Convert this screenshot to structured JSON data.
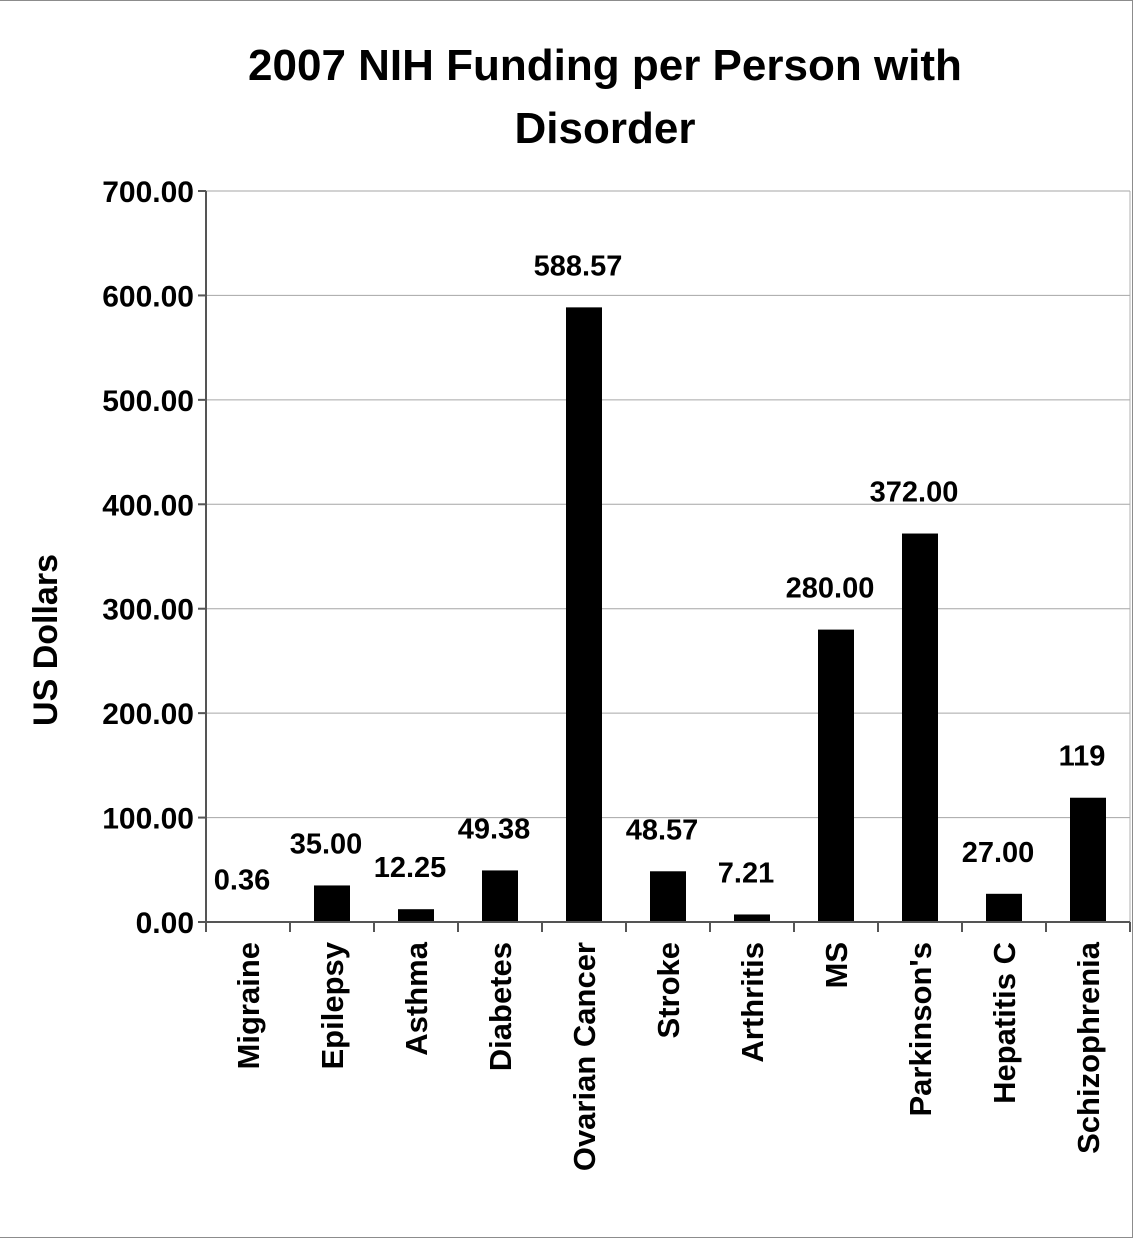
{
  "chart_data": {
    "type": "bar",
    "title_lines": [
      "2007 NIH Funding per Person with",
      "Disorder"
    ],
    "ylabel": "US Dollars",
    "xlabel": "",
    "ylim": [
      0,
      700
    ],
    "ytick_step": 100,
    "ytick_labels": [
      "0.00",
      "100.00",
      "200.00",
      "300.00",
      "400.00",
      "500.00",
      "600.00",
      "700.00"
    ],
    "grid": true,
    "legend": "none",
    "bar_color": "#000000",
    "categories": [
      "Migraine",
      "Epilepsy",
      "Asthma",
      "Diabetes",
      "Ovarian Cancer",
      "Stroke",
      "Arthritis",
      "MS",
      "Parkinson's",
      "Hepatitis C",
      "Schizophrenia"
    ],
    "values": [
      0.36,
      35.0,
      12.25,
      49.38,
      588.57,
      48.57,
      7.21,
      280.0,
      372.0,
      27.0,
      119
    ],
    "data_labels": [
      "0.36",
      "35.00",
      "12.25",
      "49.38",
      "588.57",
      "48.57",
      "7.21",
      "280.00",
      "372.00",
      "27.00",
      "119"
    ]
  }
}
